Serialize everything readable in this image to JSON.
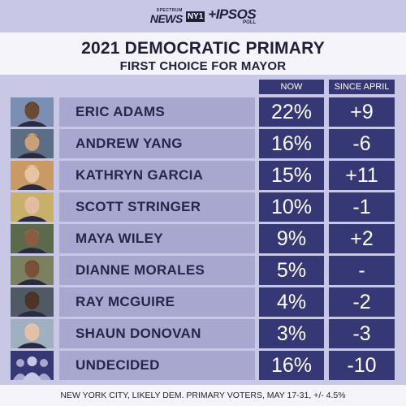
{
  "brand": {
    "spectrum": "SPECTRUM",
    "news": "NEWS",
    "ny1": "NY1",
    "ipsos": "+IPSOS",
    "poll": "POLL"
  },
  "title": "2021 DEMOCRATIC PRIMARY",
  "subtitle": "FIRST CHOICE FOR MAYOR",
  "columns": {
    "now": "NOW",
    "since": "SINCE APRIL"
  },
  "footer": "NEW YORK CITY, LIKELY DEM. PRIMARY VOTERS, MAY 17-31, +/- 4.5%",
  "colors": {
    "dark": "#363775",
    "name_bg": "#a7a7cf",
    "band": "#c8c8e6",
    "text_dark": "#1f1f3a"
  },
  "chart_data": {
    "type": "table",
    "title": "2021 DEMOCRATIC PRIMARY",
    "subtitle": "FIRST CHOICE FOR MAYOR",
    "columns": [
      "NOW",
      "SINCE APRIL"
    ],
    "rows": [
      {
        "name": "ERIC ADAMS",
        "now": "22%",
        "since": "+9"
      },
      {
        "name": "ANDREW YANG",
        "now": "16%",
        "since": "-6"
      },
      {
        "name": "KATHRYN GARCIA",
        "now": "15%",
        "since": "+11"
      },
      {
        "name": "SCOTT STRINGER",
        "now": "10%",
        "since": "-1"
      },
      {
        "name": "MAYA WILEY",
        "now": "9%",
        "since": "+2"
      },
      {
        "name": "DIANNE MORALES",
        "now": "5%",
        "since": "-"
      },
      {
        "name": "RAY MCGUIRE",
        "now": "4%",
        "since": "-2"
      },
      {
        "name": "SHAUN DONOVAN",
        "now": "3%",
        "since": "-3"
      },
      {
        "name": "UNDECIDED",
        "now": "16%",
        "since": "-10"
      }
    ]
  }
}
